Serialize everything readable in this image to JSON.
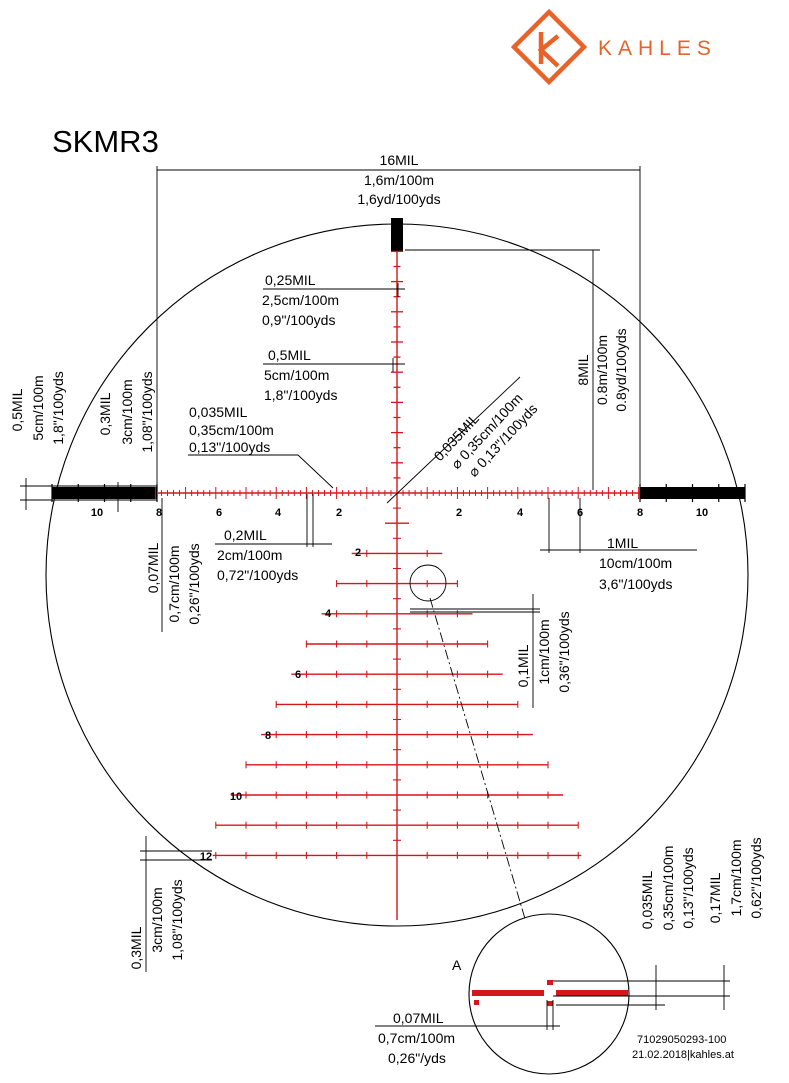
{
  "brand": {
    "name": "KAHLES",
    "color": "#e8632a"
  },
  "title": "SKMR3",
  "reticle_color": "#d4171b",
  "overall_width": {
    "line1": "16MIL",
    "line2": "1,6m/100m",
    "line3": "1,6yd/100yds"
  },
  "dims": {
    "d025": {
      "line1": "0,25MIL",
      "line2": "2,5cm/100m",
      "line3": "0,9\"/100yds"
    },
    "d05": {
      "line1": "0,5MIL",
      "line2": "5cm/100m",
      "line3": "1,8\"/100yds"
    },
    "d0035_left": {
      "line1": "0,035MIL",
      "line2": "0,35cm/100m",
      "line3": "0,13\"/100yds"
    },
    "d02": {
      "line1": "0,2MIL",
      "line2": "2cm/100m",
      "line3": "0,72\"/100yds"
    },
    "d1": {
      "line1": "1MIL",
      "line2": "10cm/100m",
      "line3": "3,6\"/100yds"
    },
    "d8": {
      "line1": "8MIL",
      "line2": "0.8m/100m",
      "line3": "0.8yd/100yds"
    },
    "diag": {
      "line1": "0,035MIL",
      "line2": "⌀ 0,35cm/100m",
      "line3": "⌀ 0,13\"/100yds"
    },
    "v05": {
      "line1": "0,5MIL",
      "line2": "5cm/100m",
      "line3": "1,8\"/100yds"
    },
    "v03": {
      "line1": "0,3MIL",
      "line2": "3cm/100m",
      "line3": "1,08\"/100yds"
    },
    "v007": {
      "line1": "0,07MIL",
      "line2": "0,7cm/100m",
      "line3": "0,26\"/100yds"
    },
    "v01": {
      "line1": "0,1MIL",
      "line2": "1cm/100m",
      "line3": "0,36\"/100yds"
    },
    "v03b": {
      "line1": "0,3MIL",
      "line2": "3cm/100m",
      "line3": "1,08\"/100yds"
    },
    "v0035": {
      "line1": "0,035MIL",
      "line2": "0,35cm/100m",
      "line3": "0,13\"/100yds"
    },
    "v017": {
      "line1": "0,17MIL",
      "line2": "1,7cm/100m",
      "line3": "0,62\"/100yds"
    },
    "d007b": {
      "line1": "0,07MIL",
      "line2": "0,7cm/100m",
      "line3": "0,26\"/yds"
    }
  },
  "axis_labels": {
    "left": [
      "10",
      "8",
      "6",
      "4",
      "2"
    ],
    "right": [
      "2",
      "4",
      "6",
      "8",
      "10"
    ],
    "vertical": [
      "2",
      "4",
      "6",
      "8",
      "10",
      "12"
    ]
  },
  "detail_label": "A",
  "footer": {
    "code": "71029050293-100",
    "date": "21.02.2018|kahles.at"
  }
}
